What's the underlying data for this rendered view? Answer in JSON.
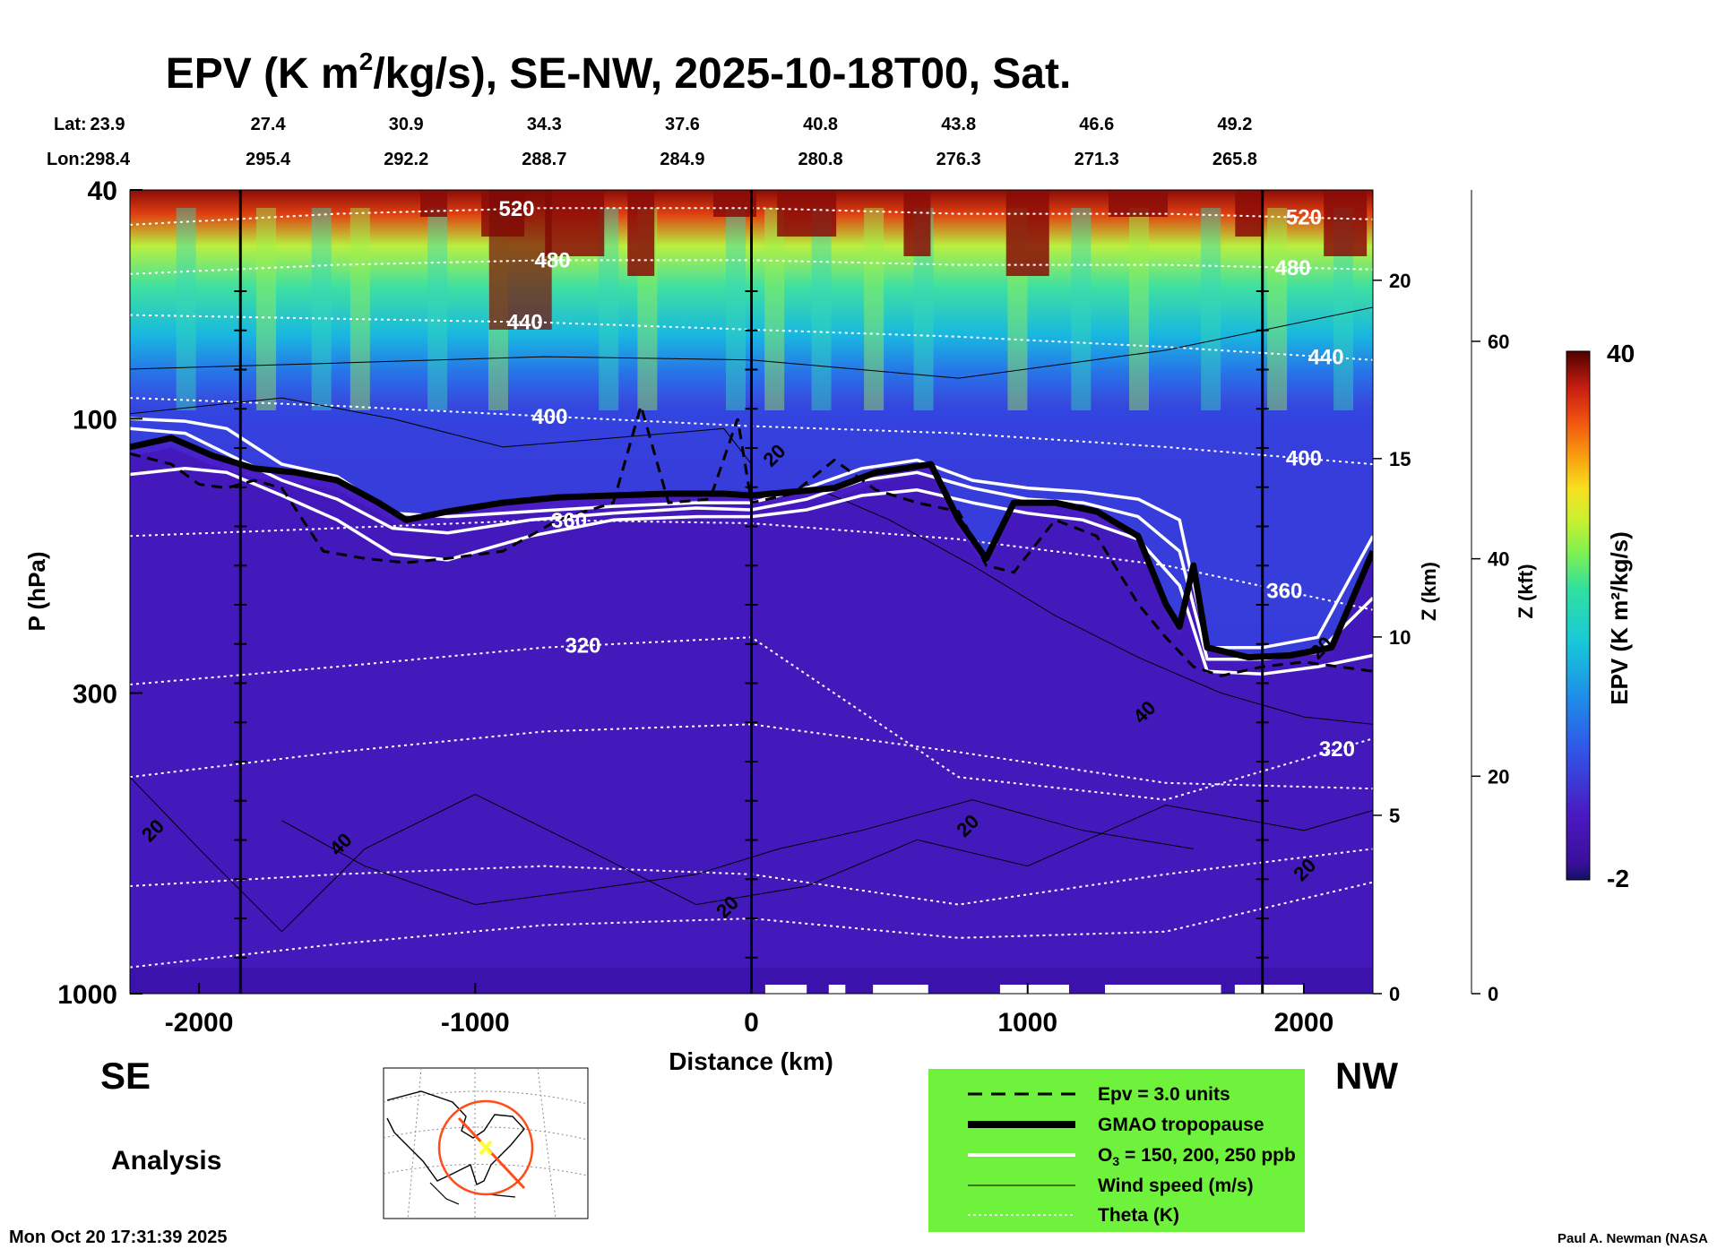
{
  "colors": {
    "legend_bg": "#6ef23c",
    "tropopause": "#000000",
    "ozone": "#ffffff",
    "theta": "#ffffff",
    "map_circle": "#ff4d1a",
    "map_marker": "#ffff33",
    "epv_scale": [
      "#101060",
      "#3a0f9a",
      "#4a18c0",
      "#5230d8",
      "#3058e8",
      "#1e90e8",
      "#18c8d8",
      "#30e0a0",
      "#80f050",
      "#c8f030",
      "#f8e020",
      "#f8a010",
      "#f05010",
      "#c81e10",
      "#8a0c08",
      "#500000"
    ]
  },
  "chart_data": {
    "type": "heatmap",
    "title_parts": {
      "pre": "EPV (K m",
      "sup": "2",
      "post": "/kg/s), SE-NW, 2025-10-18T00, Sat."
    },
    "xlabel": "Distance (km)",
    "ylabel": "P (hPa)",
    "xlim": [
      -2250,
      2250
    ],
    "ylim_hpa": [
      1000,
      40
    ],
    "x_ticks": [
      -2000,
      -1000,
      0,
      1000,
      2000
    ],
    "x_tick_labels": [
      "-2000",
      "-1000",
      "0",
      "1000",
      "2000"
    ],
    "y_ticks_hpa": [
      40,
      100,
      300,
      1000
    ],
    "y_tick_labels": [
      "40",
      "100",
      "300",
      "1000"
    ],
    "z_km": {
      "label": "Z (km)",
      "ticks": [
        0,
        5,
        10,
        15,
        20
      ],
      "labels": [
        "0",
        "5",
        "10",
        "15",
        "20"
      ]
    },
    "z_kft": {
      "label": "Z (kft)",
      "ticks": [
        0,
        20,
        40,
        60
      ],
      "labels": [
        "0",
        "20",
        "40",
        "60"
      ]
    },
    "lat_label": "Lat:",
    "lon_label": "Lon:",
    "top_axis": [
      {
        "x": -2250,
        "lat": "23.9",
        "lon": "298.4"
      },
      {
        "x": -1750,
        "lat": "27.4",
        "lon": "295.4"
      },
      {
        "x": -1250,
        "lat": "30.9",
        "lon": "292.2"
      },
      {
        "x": -750,
        "lat": "34.3",
        "lon": "288.7"
      },
      {
        "x": -250,
        "lat": "37.6",
        "lon": "284.9"
      },
      {
        "x": 250,
        "lat": "40.8",
        "lon": "280.8"
      },
      {
        "x": 750,
        "lat": "43.8",
        "lon": "276.3"
      },
      {
        "x": 1250,
        "lat": "46.6",
        "lon": "271.3"
      },
      {
        "x": 1750,
        "lat": "49.2",
        "lon": "265.8"
      }
    ],
    "vertical_markers_km": [
      -1850,
      0,
      1850
    ],
    "colorbar": {
      "label": "EPV (K m²/kg/s)",
      "min": -2,
      "max": 40,
      "min_label": "-2",
      "max_label": "40"
    },
    "theta_levels": [
      {
        "value": "520",
        "p": [
          46,
          44,
          43,
          43,
          44,
          44,
          45
        ],
        "label_x": -850,
        "label_x2": 2000
      },
      {
        "value": "480",
        "p": [
          56,
          54,
          53,
          53,
          54,
          54,
          55
        ],
        "label_x": -720,
        "label_x2": 1960
      },
      {
        "value": "440",
        "p": [
          66,
          67,
          68,
          70,
          72,
          75,
          79
        ],
        "label_x": -820,
        "label_x2": 2080
      },
      {
        "value": "400",
        "p": [
          92,
          95,
          99,
          103,
          106,
          112,
          120
        ],
        "label_x": -730,
        "label_x2": 2000
      },
      {
        "value": "360",
        "p": [
          160,
          155,
          150,
          152,
          162,
          180,
          215
        ],
        "label_x": -660,
        "label_x2": 1930
      },
      {
        "value": "320",
        "p": [
          290,
          270,
          250,
          240,
          420,
          460,
          360
        ],
        "label_x": -610,
        "label_x2": 2120
      },
      {
        "value": "",
        "p": [
          420,
          380,
          350,
          340,
          380,
          430,
          440
        ],
        "label_x": null,
        "label_x2": null
      },
      {
        "value": "",
        "p": [
          650,
          620,
          600,
          620,
          700,
          620,
          560
        ],
        "label_x": null,
        "label_x2": null
      },
      {
        "value": "",
        "p": [
          900,
          820,
          760,
          740,
          800,
          780,
          640
        ],
        "label_x": null,
        "label_x2": null
      }
    ],
    "theta_x": [
      -2250,
      -1500,
      -750,
      0,
      750,
      1500,
      2250
    ],
    "tropopause": {
      "x": [
        -2250,
        -2100,
        -1950,
        -1800,
        -1650,
        -1500,
        -1350,
        -1250,
        -1100,
        -900,
        -700,
        -500,
        -300,
        -100,
        0,
        150,
        300,
        450,
        550,
        650,
        750,
        850,
        950,
        1100,
        1250,
        1400,
        1500,
        1550,
        1600,
        1650,
        1800,
        1950,
        2100,
        2250
      ],
      "p": [
        112,
        108,
        116,
        122,
        124,
        128,
        140,
        150,
        145,
        140,
        137,
        136,
        135,
        135,
        136,
        134,
        132,
        124,
        122,
        120,
        150,
        175,
        140,
        140,
        145,
        160,
        210,
        230,
        180,
        250,
        260,
        258,
        250,
        170
      ]
    },
    "epv3": {
      "x": [
        -2250,
        -2100,
        -2000,
        -1900,
        -1800,
        -1700,
        -1550,
        -1400,
        -1250,
        -1100,
        -900,
        -700,
        -500,
        -400,
        -300,
        -150,
        -50,
        0,
        150,
        300,
        450,
        600,
        750,
        850,
        950,
        1100,
        1250,
        1400,
        1500,
        1600,
        1700,
        1850,
        2000,
        2250
      ],
      "p": [
        115,
        120,
        130,
        132,
        128,
        132,
        170,
        175,
        178,
        175,
        170,
        150,
        140,
        95,
        140,
        138,
        100,
        140,
        135,
        118,
        133,
        140,
        145,
        180,
        185,
        150,
        160,
        210,
        240,
        270,
        280,
        270,
        265,
        275
      ]
    },
    "o3_150": {
      "x": [
        -2250,
        -2050,
        -1900,
        -1700,
        -1500,
        -1300,
        -1100,
        -800,
        -500,
        -200,
        0,
        200,
        400,
        600,
        800,
        1000,
        1200,
        1400,
        1550,
        1650,
        1850,
        2050,
        2250
      ],
      "p": [
        100,
        101,
        104,
        120,
        126,
        146,
        148,
        145,
        142,
        140,
        140,
        132,
        122,
        118,
        128,
        132,
        134,
        138,
        150,
        250,
        250,
        240,
        160
      ]
    },
    "o3_200": {
      "x": [
        -2250,
        -2050,
        -1900,
        -1700,
        -1500,
        -1300,
        -1100,
        -800,
        -500,
        -200,
        0,
        200,
        400,
        600,
        800,
        1000,
        1200,
        1400,
        1550,
        1650,
        1850,
        2050,
        2250
      ],
      "p": [
        104,
        106,
        115,
        128,
        138,
        155,
        158,
        150,
        146,
        143,
        144,
        138,
        128,
        124,
        132,
        138,
        140,
        148,
        170,
        262,
        262,
        255,
        205
      ]
    },
    "o3_250": {
      "x": [
        -2250,
        -2050,
        -1900,
        -1700,
        -1500,
        -1300,
        -1100,
        -800,
        -500,
        -200,
        0,
        200,
        400,
        600,
        800,
        1000,
        1200,
        1400,
        1550,
        1650,
        1850,
        2050,
        2250
      ],
      "p": [
        125,
        122,
        124,
        136,
        150,
        172,
        176,
        160,
        150,
        148,
        148,
        144,
        136,
        133,
        140,
        146,
        150,
        162,
        195,
        275,
        278,
        270,
        258
      ]
    },
    "wind_labels": [
      {
        "text": "20",
        "x": 100,
        "p": 118
      },
      {
        "text": "20",
        "x": -2150,
        "p": 530
      },
      {
        "text": "40",
        "x": -1470,
        "p": 560
      },
      {
        "text": "20",
        "x": 800,
        "p": 520
      },
      {
        "text": "40",
        "x": 1440,
        "p": 330
      },
      {
        "text": "20",
        "x": -70,
        "p": 720
      },
      {
        "text": "20",
        "x": 2020,
        "p": 620
      },
      {
        "text": "20",
        "x": 2080,
        "p": 255
      }
    ]
  },
  "labels": {
    "se": "SE",
    "nw": "NW",
    "analysis": "Analysis",
    "timestamp": "Mon Oct 20 17:31:39 2025",
    "credit": "Paul A. Newman (NASA"
  },
  "legend": {
    "items": [
      {
        "label": "Epv = 3.0 units",
        "style": "dashed"
      },
      {
        "label": "GMAO tropopause",
        "style": "thick"
      },
      {
        "label_pre": "O",
        "label_sub": "3",
        "label_post": " = 150, 200, 250 ppb",
        "style": "white"
      },
      {
        "label": "Wind speed (m/s)",
        "style": "thin"
      },
      {
        "label": "Theta (K)",
        "style": "dotted"
      }
    ]
  }
}
